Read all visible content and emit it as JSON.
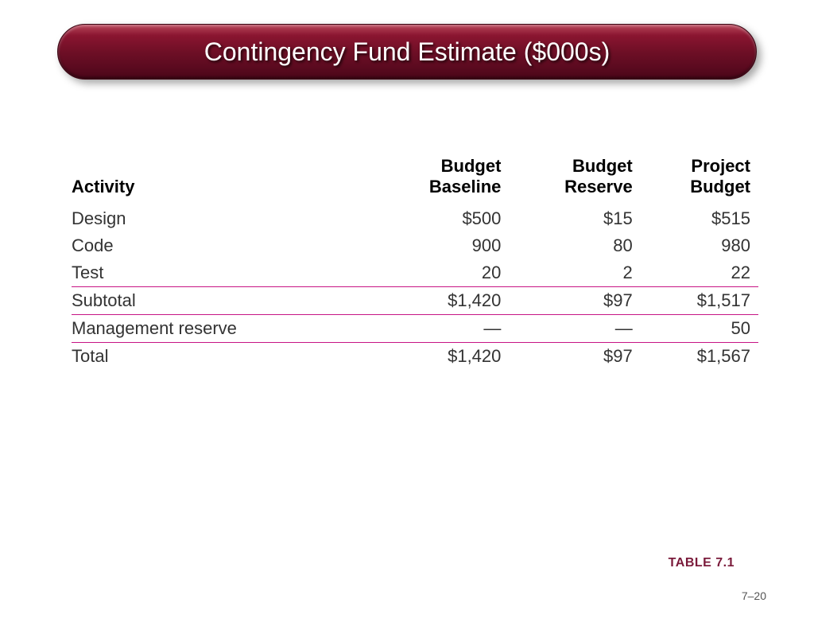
{
  "title": "Contingency Fund Estimate ($000s)",
  "table": {
    "columns": [
      "Activity",
      "Budget Baseline",
      "Budget Reserve",
      "Project Budget"
    ],
    "rows": [
      {
        "label": "Design",
        "baseline": "$500",
        "reserve": "$15",
        "budget": "$515",
        "rule": false
      },
      {
        "label": "Code",
        "baseline": "900",
        "reserve": "80",
        "budget": "980",
        "rule": false
      },
      {
        "label": "Test",
        "baseline": "20",
        "reserve": "2",
        "budget": "22",
        "rule": false
      },
      {
        "label": "Subtotal",
        "baseline": "$1,420",
        "reserve": "$97",
        "budget": "$1,517",
        "rule": true
      },
      {
        "label": "Management reserve",
        "baseline": "—",
        "reserve": "—",
        "budget": "50",
        "rule": true
      },
      {
        "label": "Total",
        "baseline": "$1,420",
        "reserve": "$97",
        "budget": "$1,567",
        "rule": true
      }
    ],
    "rule_color": "#c71585",
    "header_fontsize": 22,
    "body_fontsize": 22,
    "text_color": "#333333"
  },
  "caption": "TABLE 7.1",
  "page_number": "7–20",
  "colors": {
    "title_bg_top": "#b8465a",
    "title_bg_bottom": "#4a0618",
    "title_text": "#ffffff",
    "caption_color": "#7a1a3a",
    "background": "#ffffff"
  }
}
